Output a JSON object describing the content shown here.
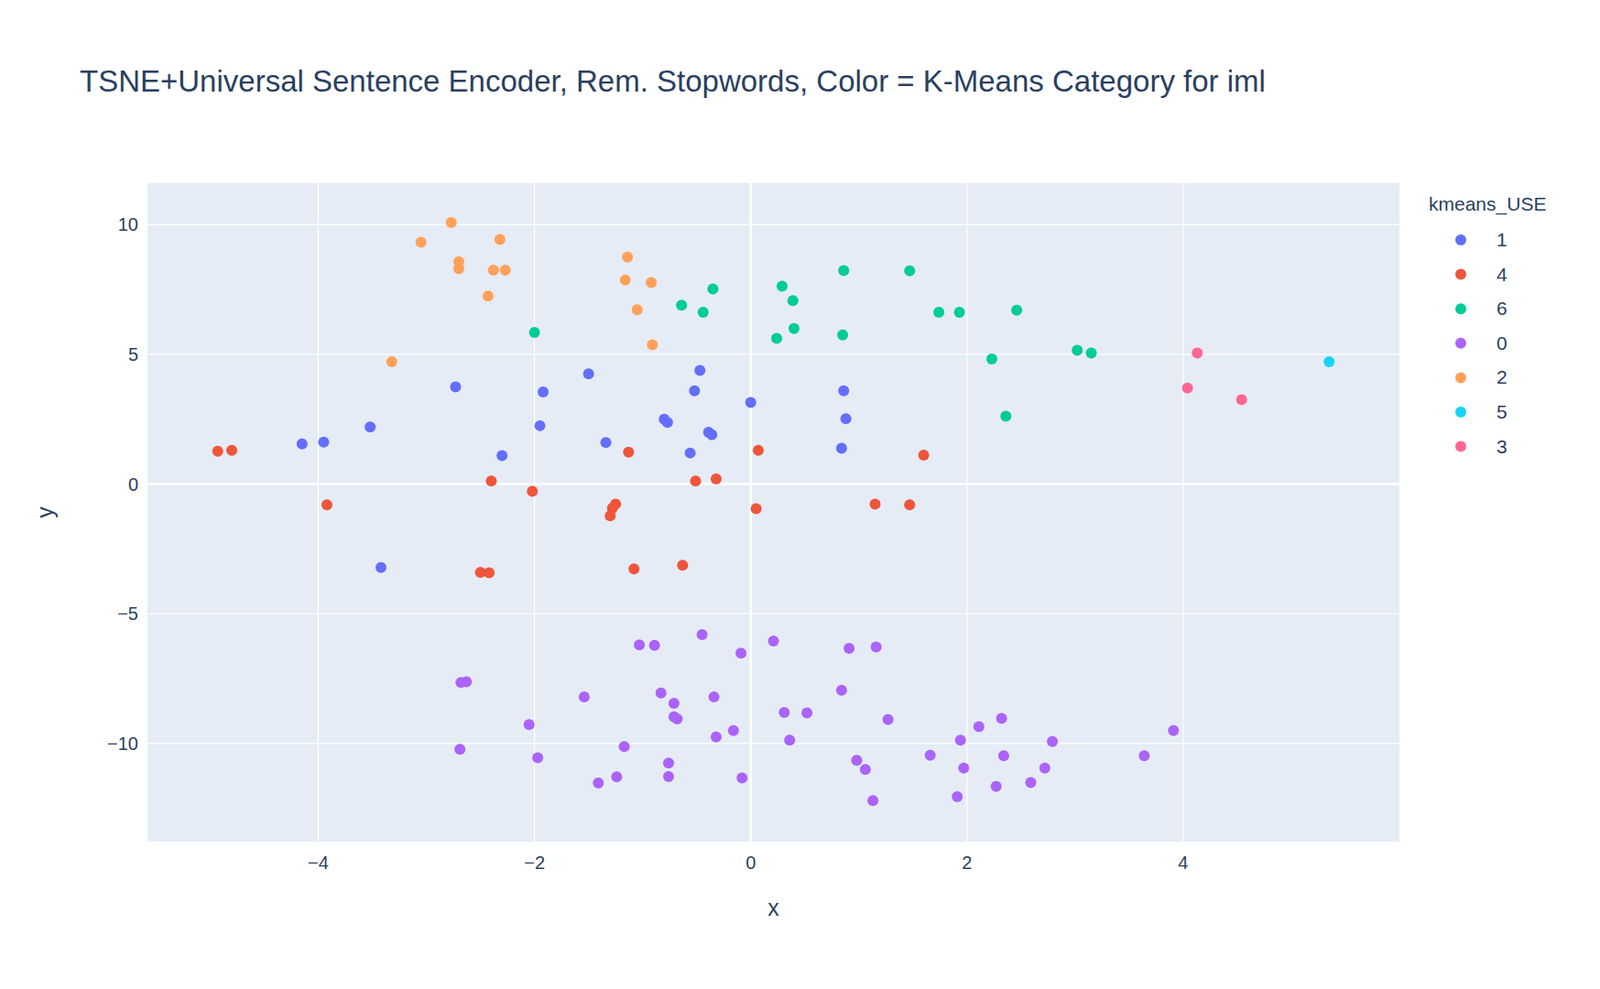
{
  "chart_data": {
    "type": "scatter",
    "title": "TSNE+Universal Sentence Encoder, Rem. Stopwords, Color = K-Means Category for iml",
    "x_label": "x",
    "y_label": "y",
    "legend_title": "kmeans_USE",
    "xlim": [
      -5.58,
      6.0
    ],
    "ylim": [
      -13.78,
      11.6
    ],
    "xticks": [
      {
        "value": -4,
        "label": "−4"
      },
      {
        "value": -2,
        "label": "−2"
      },
      0,
      2,
      4
    ],
    "yticks": [
      {
        "value": -10,
        "label": "−10"
      },
      {
        "value": -5,
        "label": "−5"
      },
      0,
      5,
      10
    ],
    "grid": true,
    "legend": "right",
    "series": [
      {
        "name": "1",
        "color": "#636efa",
        "x": [
          -2.73,
          -4.15,
          -3.95,
          -3.52,
          -2.3,
          -1.92,
          -1.95,
          -1.5,
          -1.34,
          -0.8,
          -0.77,
          -0.47,
          -0.52,
          -0.39,
          -0.36,
          -0.56,
          0.0,
          0.86,
          0.88,
          0.84,
          -3.42
        ],
        "values": [
          3.75,
          1.55,
          1.62,
          2.2,
          1.1,
          3.55,
          2.25,
          4.25,
          1.6,
          2.5,
          2.38,
          4.38,
          3.6,
          2.0,
          1.9,
          1.2,
          3.15,
          3.6,
          2.52,
          1.38,
          -3.22
        ]
      },
      {
        "name": "4",
        "color": "#EF553B",
        "x": [
          -4.93,
          -4.8,
          -3.92,
          -2.4,
          -2.02,
          -1.13,
          -1.25,
          -1.28,
          -1.3,
          -0.51,
          -0.32,
          0.07,
          0.05,
          -1.08,
          -0.63,
          -2.5,
          -2.42,
          1.15,
          1.47,
          1.6
        ],
        "values": [
          1.27,
          1.3,
          -0.8,
          0.12,
          -0.28,
          1.23,
          -0.77,
          -0.93,
          -1.22,
          0.12,
          0.2,
          1.3,
          -0.95,
          -3.27,
          -3.13,
          -3.4,
          -3.42,
          -0.77,
          -0.8,
          1.12
        ]
      },
      {
        "name": "6",
        "color": "#00cc96",
        "x": [
          -2.0,
          -0.64,
          -0.44,
          -0.35,
          0.29,
          0.39,
          0.4,
          0.24,
          0.86,
          0.85,
          1.47,
          1.74,
          1.93,
          2.46,
          2.23,
          3.02,
          3.15,
          2.36
        ],
        "values": [
          5.85,
          6.9,
          6.62,
          7.52,
          7.63,
          7.07,
          6.0,
          5.62,
          8.23,
          5.75,
          8.22,
          6.62,
          6.62,
          6.7,
          4.82,
          5.16,
          5.05,
          2.62
        ]
      },
      {
        "name": "0",
        "color": "#ab63fa",
        "x": [
          -0.45,
          0.21,
          -1.03,
          -0.89,
          -0.09,
          0.91,
          1.16,
          -2.68,
          -2.63,
          -1.54,
          -0.83,
          -0.71,
          -0.34,
          0.84,
          0.31,
          0.52,
          -0.71,
          -0.68,
          -2.05,
          -0.16,
          -0.32,
          0.36,
          1.27,
          2.11,
          2.32,
          1.94,
          2.79,
          3.91,
          -2.69,
          -1.17,
          -1.97,
          -0.76,
          0.98,
          1.06,
          1.66,
          1.97,
          2.34,
          2.72,
          3.64,
          -1.41,
          -1.24,
          -0.76,
          -0.08,
          1.13,
          1.91,
          2.27,
          2.59
        ],
        "values": [
          -5.8,
          -6.05,
          -6.2,
          -6.22,
          -6.52,
          -6.33,
          -6.28,
          -7.65,
          -7.62,
          -8.2,
          -8.05,
          -8.45,
          -8.2,
          -7.95,
          -8.8,
          -8.82,
          -8.97,
          -9.05,
          -9.27,
          -9.5,
          -9.75,
          -9.87,
          -9.08,
          -9.35,
          -9.03,
          -9.87,
          -9.92,
          -9.5,
          -10.22,
          -10.12,
          -10.55,
          -10.75,
          -10.65,
          -11.0,
          -10.45,
          -10.95,
          -10.47,
          -10.95,
          -10.47,
          -11.52,
          -11.28,
          -11.27,
          -11.33,
          -12.2,
          -12.05,
          -11.65,
          -11.5
        ]
      },
      {
        "name": "2",
        "color": "#FFA15A",
        "x": [
          -2.77,
          -3.05,
          -2.7,
          -2.7,
          -2.32,
          -2.38,
          -2.27,
          -2.43,
          -1.14,
          -1.16,
          -0.92,
          -1.05,
          -0.91,
          -3.32
        ],
        "values": [
          10.08,
          9.32,
          8.57,
          8.3,
          9.43,
          8.25,
          8.25,
          7.25,
          8.75,
          7.87,
          7.77,
          6.72,
          5.37,
          4.72
        ]
      },
      {
        "name": "5",
        "color": "#19d3f3",
        "x": [
          5.35
        ],
        "values": [
          4.72
        ]
      },
      {
        "name": "3",
        "color": "#FF6692",
        "x": [
          4.13,
          4.04,
          4.54
        ],
        "values": [
          5.05,
          3.7,
          3.25
        ]
      }
    ]
  }
}
